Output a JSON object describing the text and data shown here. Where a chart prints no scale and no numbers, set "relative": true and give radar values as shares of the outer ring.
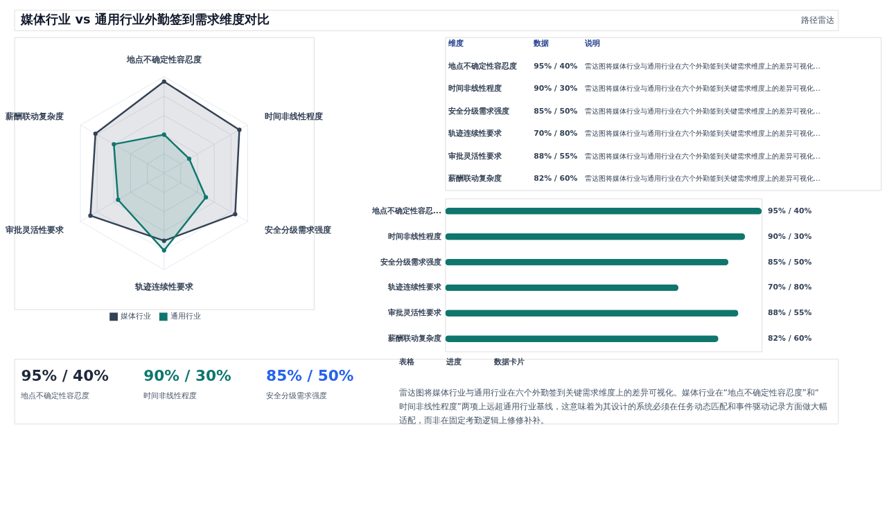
{
  "chart_data": [
    {
      "type": "radar",
      "relative": true,
      "categories": [
        "地点不确定性容忍度",
        "时间非线性程度",
        "安全分级需求强度",
        "轨迹连续性要求",
        "审批灵活性要求",
        "薪酬联动复杂度"
      ],
      "series": [
        {
          "name": "媒体行业",
          "color": "#334155",
          "values": [
            0.95,
            0.9,
            0.85,
            0.7,
            0.88,
            0.82
          ]
        },
        {
          "name": "通用行业",
          "color": "#0f766e",
          "values": [
            0.4,
            0.3,
            0.5,
            0.8,
            0.55,
            0.6
          ]
        }
      ],
      "legend": "bottom",
      "marker": "circle"
    },
    {
      "type": "bar",
      "orientation": "horizontal",
      "color": "#0f766e",
      "categories": [
        "地点不确定性容忍...",
        "时间非线性程度",
        "安全分级需求强度",
        "轨迹连续性要求",
        "审批灵活性要求",
        "薪酬联动复杂度"
      ],
      "values": [
        95,
        90,
        85,
        70,
        88,
        82
      ],
      "value_labels": [
        "95% / 40%",
        "90% / 30%",
        "85% / 50%",
        "70% / 80%",
        "88% / 55%",
        "82% / 60%"
      ]
    },
    {
      "type": "other",
      "title": "媒体行业 vs 通用行业外勤签到需求维度对比",
      "subtitle": "路径雷达",
      "annotations": [
        "维度",
        "数据",
        "说明",
        "地点不确定性容忍度",
        "95% / 40%",
        "雷达图将媒体行业与通用行业在六个外勤签到关键需求维度上的差异可视化...",
        "时间非线性程度",
        "90% / 30%",
        "雷达图将媒体行业与通用行业在六个外勤签到关键需求维度上的差异可视化...",
        "安全分级需求强度",
        "85% / 50%",
        "雷达图将媒体行业与通用行业在六个外勤签到关键需求维度上的差异可视化...",
        "轨迹连续性要求",
        "70% / 80%",
        "雷达图将媒体行业与通用行业在六个外勤签到关键需求维度上的差异可视化...",
        "审批灵活性要求",
        "88% / 55%",
        "雷达图将媒体行业与通用行业在六个外勤签到关键需求维度上的差异可视化...",
        "薪酬联动复杂度",
        "82% / 60%",
        "雷达图将媒体行业与通用行业在六个外勤签到关键需求维度上的差异可视化...",
        "95% / 40%",
        "地点不确定性容忍度",
        "90% / 30%",
        "时间非线性程度",
        "85% / 50%",
        "安全分级需求强度",
        "表格",
        "进度",
        "数据卡片",
        "雷达图将媒体行业与通用行业在六个外勤签到关键需求维度上的差异可视化。媒体行业在“地点不确定性容忍度”和“时间非线性程度”两项上远超通用行业基线，这意味着为其设计的系统必须在任务动态匹配和事件驱动记录方面做大幅适配，而非在固定考勤逻辑上修修补补。"
      ]
    }
  ]
}
